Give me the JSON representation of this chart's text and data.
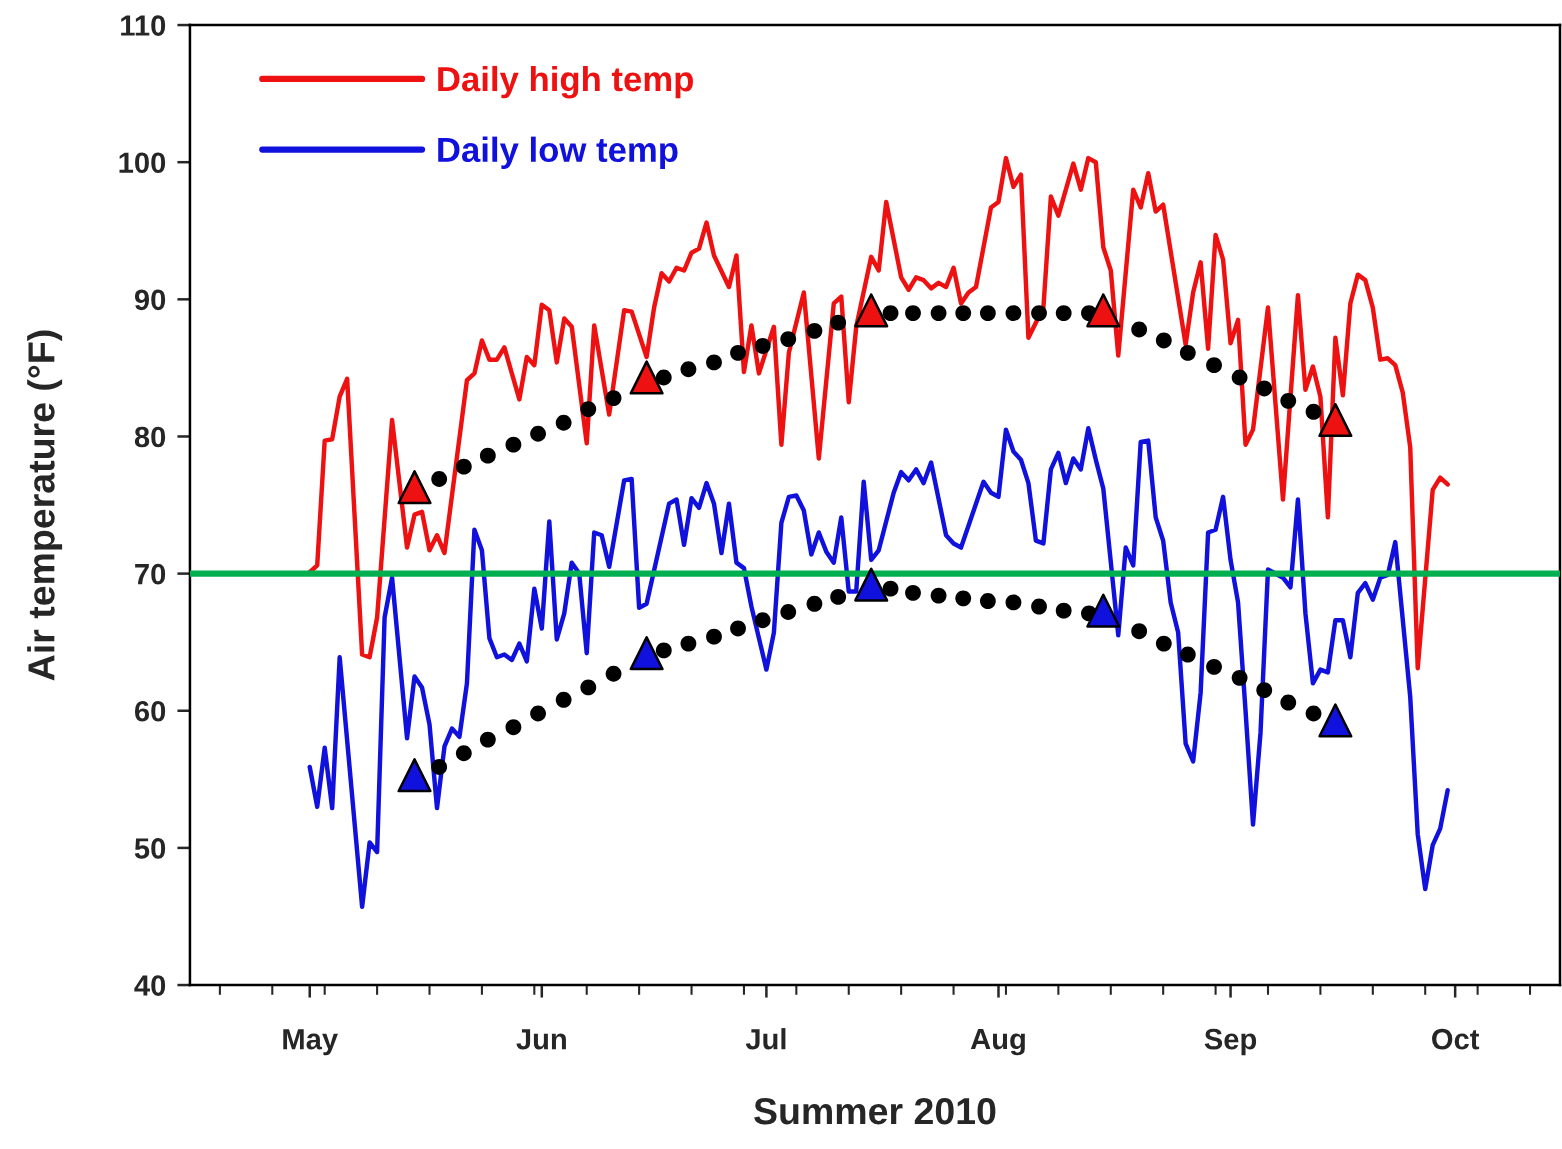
{
  "chart_data": {
    "type": "line",
    "xlabel": "Summer 2010",
    "ylabel": "Air temperature (°F)",
    "ylim": [
      40,
      110
    ],
    "yticks": [
      40,
      50,
      60,
      70,
      80,
      90,
      100,
      110
    ],
    "xlim": [
      "2010-04-15",
      "2010-10-15"
    ],
    "xticks": [
      {
        "value": "2010-04-19",
        "label": null
      },
      {
        "value": "2010-04-26",
        "label": null
      },
      {
        "value": "2010-05-01",
        "label": "May"
      },
      {
        "value": "2010-05-03",
        "label": null
      },
      {
        "value": "2010-05-10",
        "label": null
      },
      {
        "value": "2010-05-17",
        "label": null
      },
      {
        "value": "2010-05-24",
        "label": null
      },
      {
        "value": "2010-05-31",
        "label": null
      },
      {
        "value": "2010-06-01",
        "label": "Jun"
      },
      {
        "value": "2010-06-07",
        "label": null
      },
      {
        "value": "2010-06-14",
        "label": null
      },
      {
        "value": "2010-06-21",
        "label": null
      },
      {
        "value": "2010-06-28",
        "label": null
      },
      {
        "value": "2010-07-01",
        "label": "Jul"
      },
      {
        "value": "2010-07-05",
        "label": null
      },
      {
        "value": "2010-07-12",
        "label": null
      },
      {
        "value": "2010-07-19",
        "label": null
      },
      {
        "value": "2010-07-26",
        "label": null
      },
      {
        "value": "2010-08-01",
        "label": "Aug"
      },
      {
        "value": "2010-08-02",
        "label": null
      },
      {
        "value": "2010-08-09",
        "label": null
      },
      {
        "value": "2010-08-16",
        "label": null
      },
      {
        "value": "2010-08-23",
        "label": null
      },
      {
        "value": "2010-08-30",
        "label": null
      },
      {
        "value": "2010-09-01",
        "label": "Sep"
      },
      {
        "value": "2010-09-06",
        "label": null
      },
      {
        "value": "2010-09-13",
        "label": null
      },
      {
        "value": "2010-09-20",
        "label": null
      },
      {
        "value": "2010-09-27",
        "label": null
      },
      {
        "value": "2010-10-01",
        "label": "Oct"
      },
      {
        "value": "2010-10-04",
        "label": null
      },
      {
        "value": "2010-10-11",
        "label": null
      }
    ],
    "legend": "top left",
    "marker": "none",
    "line_style": "solid",
    "ref_lines": [
      {
        "axis": "y",
        "value": 70,
        "color": "#00b050"
      }
    ],
    "series": [
      {
        "name": "Daily high temp",
        "color": "#ee1111",
        "x": [
          "2010-05-01",
          "2010-05-02",
          "2010-05-03",
          "2010-05-04",
          "2010-05-05",
          "2010-05-06",
          "2010-05-08",
          "2010-05-09",
          "2010-05-10",
          "2010-05-12",
          "2010-05-14",
          "2010-05-15",
          "2010-05-16",
          "2010-05-17",
          "2010-05-18",
          "2010-05-19",
          "2010-05-22",
          "2010-05-23",
          "2010-05-24",
          "2010-05-25",
          "2010-05-26",
          "2010-05-27",
          "2010-05-29",
          "2010-05-30",
          "2010-05-31",
          "2010-06-01",
          "2010-06-02",
          "2010-06-03",
          "2010-06-04",
          "2010-06-05",
          "2010-06-07",
          "2010-06-08",
          "2010-06-10",
          "2010-06-12",
          "2010-06-13",
          "2010-06-15",
          "2010-06-16",
          "2010-06-17",
          "2010-06-18",
          "2010-06-19",
          "2010-06-20",
          "2010-06-21",
          "2010-06-22",
          "2010-06-23",
          "2010-06-24",
          "2010-06-26",
          "2010-06-27",
          "2010-06-28",
          "2010-06-29",
          "2010-06-30",
          "2010-07-02",
          "2010-07-03",
          "2010-07-04",
          "2010-07-06",
          "2010-07-08",
          "2010-07-10",
          "2010-07-11",
          "2010-07-12",
          "2010-07-13",
          "2010-07-15",
          "2010-07-16",
          "2010-07-17",
          "2010-07-19",
          "2010-07-20",
          "2010-07-21",
          "2010-07-22",
          "2010-07-23",
          "2010-07-24",
          "2010-07-25",
          "2010-07-26",
          "2010-07-27",
          "2010-07-28",
          "2010-07-29",
          "2010-07-31",
          "2010-08-01",
          "2010-08-02",
          "2010-08-03",
          "2010-08-04",
          "2010-08-05",
          "2010-08-07",
          "2010-08-08",
          "2010-08-09",
          "2010-08-11",
          "2010-08-12",
          "2010-08-13",
          "2010-08-14",
          "2010-08-15",
          "2010-08-16",
          "2010-08-17",
          "2010-08-19",
          "2010-08-20",
          "2010-08-21",
          "2010-08-22",
          "2010-08-23",
          "2010-08-26",
          "2010-08-27",
          "2010-08-28",
          "2010-08-29",
          "2010-08-30",
          "2010-08-31",
          "2010-09-01",
          "2010-09-02",
          "2010-09-03",
          "2010-09-04",
          "2010-09-06",
          "2010-09-08",
          "2010-09-10",
          "2010-09-11",
          "2010-09-12",
          "2010-09-13",
          "2010-09-14",
          "2010-09-15",
          "2010-09-16",
          "2010-09-17",
          "2010-09-18",
          "2010-09-19",
          "2010-09-20",
          "2010-09-21",
          "2010-09-22",
          "2010-09-23",
          "2010-09-24",
          "2010-09-25",
          "2010-09-26",
          "2010-09-28",
          "2010-09-29",
          "2010-09-30"
        ],
        "values": [
          70.1,
          70.6,
          79.7,
          79.8,
          82.9,
          84.2,
          64.1,
          63.9,
          66.8,
          81.2,
          71.9,
          74.3,
          74.5,
          71.7,
          72.8,
          71.5,
          84.1,
          84.6,
          87.0,
          85.6,
          85.6,
          86.5,
          82.7,
          85.8,
          85.2,
          89.6,
          89.2,
          85.4,
          88.6,
          88.0,
          79.5,
          88.1,
          81.6,
          89.2,
          89.1,
          85.8,
          89.4,
          91.9,
          91.3,
          92.3,
          92.1,
          93.4,
          93.7,
          95.6,
          93.2,
          90.9,
          93.2,
          84.7,
          88.1,
          84.6,
          88.0,
          79.4,
          86.1,
          90.5,
          78.4,
          89.7,
          90.2,
          82.5,
          88.0,
          93.1,
          92.1,
          97.1,
          91.6,
          90.7,
          91.6,
          91.4,
          90.8,
          91.2,
          90.9,
          92.3,
          89.7,
          90.5,
          90.9,
          96.7,
          97.1,
          100.3,
          98.2,
          99.1,
          87.2,
          89.4,
          97.5,
          96.1,
          99.9,
          98.0,
          100.3,
          100.0,
          93.8,
          92.1,
          85.9,
          98.0,
          96.7,
          99.2,
          96.4,
          96.9,
          86.7,
          90.5,
          92.7,
          86.4,
          94.7,
          92.9,
          86.8,
          88.5,
          79.4,
          80.5,
          89.4,
          75.4,
          90.3,
          83.4,
          85.1,
          82.9,
          74.1,
          87.2,
          83.0,
          89.7,
          91.8,
          91.4,
          89.4,
          85.6,
          85.7,
          85.2,
          83.2,
          79.2,
          63.1,
          76.1,
          77.0,
          76.5
        ]
      },
      {
        "name": "Daily low temp",
        "color": "#1111dd",
        "x": [
          "2010-05-01",
          "2010-05-02",
          "2010-05-03",
          "2010-05-04",
          "2010-05-05",
          "2010-05-08",
          "2010-05-09",
          "2010-05-10",
          "2010-05-11",
          "2010-05-12",
          "2010-05-14",
          "2010-05-15",
          "2010-05-16",
          "2010-05-17",
          "2010-05-18",
          "2010-05-19",
          "2010-05-20",
          "2010-05-21",
          "2010-05-22",
          "2010-05-23",
          "2010-05-24",
          "2010-05-25",
          "2010-05-26",
          "2010-05-27",
          "2010-05-28",
          "2010-05-29",
          "2010-05-30",
          "2010-05-31",
          "2010-06-01",
          "2010-06-02",
          "2010-06-03",
          "2010-06-04",
          "2010-06-05",
          "2010-06-06",
          "2010-06-07",
          "2010-06-08",
          "2010-06-09",
          "2010-06-10",
          "2010-06-12",
          "2010-06-13",
          "2010-06-14",
          "2010-06-15",
          "2010-06-18",
          "2010-06-19",
          "2010-06-20",
          "2010-06-21",
          "2010-06-22",
          "2010-06-23",
          "2010-06-24",
          "2010-06-25",
          "2010-06-26",
          "2010-06-27",
          "2010-06-28",
          "2010-06-29",
          "2010-07-01",
          "2010-07-02",
          "2010-07-03",
          "2010-07-04",
          "2010-07-05",
          "2010-07-06",
          "2010-07-07",
          "2010-07-08",
          "2010-07-09",
          "2010-07-10",
          "2010-07-11",
          "2010-07-12",
          "2010-07-13",
          "2010-07-14",
          "2010-07-15",
          "2010-07-16",
          "2010-07-18",
          "2010-07-19",
          "2010-07-20",
          "2010-07-21",
          "2010-07-22",
          "2010-07-23",
          "2010-07-25",
          "2010-07-26",
          "2010-07-27",
          "2010-07-30",
          "2010-07-31",
          "2010-08-01",
          "2010-08-02",
          "2010-08-03",
          "2010-08-04",
          "2010-08-05",
          "2010-08-06",
          "2010-08-07",
          "2010-08-08",
          "2010-08-09",
          "2010-08-10",
          "2010-08-11",
          "2010-08-12",
          "2010-08-13",
          "2010-08-14",
          "2010-08-15",
          "2010-08-17",
          "2010-08-18",
          "2010-08-19",
          "2010-08-20",
          "2010-08-21",
          "2010-08-22",
          "2010-08-23",
          "2010-08-24",
          "2010-08-25",
          "2010-08-26",
          "2010-08-27",
          "2010-08-28",
          "2010-08-29",
          "2010-08-30",
          "2010-08-31",
          "2010-09-01",
          "2010-09-02",
          "2010-09-03",
          "2010-09-04",
          "2010-09-05",
          "2010-09-06",
          "2010-09-08",
          "2010-09-09",
          "2010-09-10",
          "2010-09-11",
          "2010-09-12",
          "2010-09-13",
          "2010-09-14",
          "2010-09-15",
          "2010-09-16",
          "2010-09-17",
          "2010-09-18",
          "2010-09-19",
          "2010-09-20",
          "2010-09-21",
          "2010-09-22",
          "2010-09-23",
          "2010-09-25",
          "2010-09-26",
          "2010-09-27",
          "2010-09-28",
          "2010-09-29",
          "2010-09-30"
        ],
        "values": [
          55.9,
          53.0,
          57.3,
          52.9,
          63.9,
          45.7,
          50.4,
          49.7,
          66.8,
          69.7,
          58.0,
          62.5,
          61.7,
          59.0,
          52.9,
          57.4,
          58.7,
          58.1,
          62.0,
          73.2,
          71.7,
          65.3,
          63.9,
          64.1,
          63.7,
          64.9,
          63.6,
          68.9,
          66.0,
          73.8,
          65.2,
          67.1,
          70.8,
          70.0,
          64.2,
          73.0,
          72.8,
          70.5,
          76.8,
          76.9,
          67.5,
          67.8,
          75.1,
          75.4,
          72.1,
          75.5,
          74.8,
          76.6,
          75.1,
          71.5,
          75.1,
          70.8,
          70.4,
          67.6,
          63.0,
          65.7,
          73.7,
          75.6,
          75.7,
          74.6,
          71.4,
          73.0,
          71.6,
          70.8,
          74.1,
          68.7,
          68.7,
          76.7,
          71.0,
          71.7,
          75.9,
          77.4,
          76.8,
          77.6,
          76.6,
          78.1,
          72.8,
          72.2,
          71.9,
          76.7,
          75.9,
          75.6,
          80.5,
          78.9,
          78.3,
          76.6,
          72.4,
          72.2,
          77.6,
          78.8,
          76.6,
          78.4,
          77.6,
          80.6,
          78.3,
          76.2,
          65.5,
          71.9,
          70.6,
          79.6,
          79.7,
          74.1,
          72.4,
          67.9,
          65.7,
          57.6,
          56.3,
          61.3,
          73.0,
          73.2,
          75.6,
          71.0,
          67.9,
          60.0,
          51.7,
          58.4,
          70.3,
          69.7,
          69.0,
          75.4,
          67.1,
          62.0,
          63.0,
          62.8,
          66.6,
          66.6,
          63.9,
          68.6,
          69.3,
          68.1,
          69.7,
          69.9,
          72.3,
          61.0,
          51.0,
          47.0,
          50.2,
          51.4,
          54.2
        ]
      },
      {
        "type": "scatter",
        "marker": "circle",
        "color": "#000000",
        "x": [
          "2010-05-18T07:00",
          "2010-05-21T14:00",
          "2010-05-24T19:00",
          "2010-05-28T05:00",
          "2010-05-31T12:00",
          "2010-06-03T22:00",
          "2010-06-07T05:00",
          "2010-06-10T14:00",
          "2010-06-17T07:00",
          "2010-06-20T14:00",
          "2010-06-24T00:00",
          "2010-06-27T05:00",
          "2010-06-30T12:00",
          "2010-07-03T22:00",
          "2010-07-07T10:00",
          "2010-07-10T14:00",
          "2010-07-17T14:00",
          "2010-07-20T14:00",
          "2010-07-24T00:00",
          "2010-07-27T07:00",
          "2010-07-30T14:00",
          "2010-08-03T00:00",
          "2010-08-06T10:00",
          "2010-08-09T17:00",
          "2010-08-13T02:00",
          "2010-08-19T19:00",
          "2010-08-23T02:00",
          "2010-08-26T07:00",
          "2010-08-29T19:00",
          "2010-09-02T05:00",
          "2010-09-05T12:00",
          "2010-09-08T17:00",
          "2010-09-12T02:00"
        ],
        "values": [
          76.9,
          77.8,
          78.6,
          79.4,
          80.2,
          81.0,
          82.0,
          82.8,
          84.3,
          84.9,
          85.4,
          86.1,
          86.6,
          87.1,
          87.7,
          88.3,
          89.0,
          89.0,
          89.0,
          89.0,
          89.0,
          89.0,
          89.0,
          89.0,
          89.0,
          87.8,
          87.0,
          86.1,
          85.2,
          84.3,
          83.5,
          82.6,
          81.8
        ]
      },
      {
        "type": "scatter",
        "marker": "circle",
        "color": "#000000",
        "x": [
          "2010-05-18T07:00",
          "2010-05-21T14:00",
          "2010-05-24T19:00",
          "2010-05-28T05:00",
          "2010-05-31T12:00",
          "2010-06-03T22:00",
          "2010-06-07T05:00",
          "2010-06-10T14:00",
          "2010-06-17T07:00",
          "2010-06-20T14:00",
          "2010-06-24T00:00",
          "2010-06-27T05:00",
          "2010-06-30T12:00",
          "2010-07-03T22:00",
          "2010-07-07T10:00",
          "2010-07-10T14:00",
          "2010-07-17T14:00",
          "2010-07-20T14:00",
          "2010-07-24T00:00",
          "2010-07-27T07:00",
          "2010-07-30T14:00",
          "2010-08-03T00:00",
          "2010-08-06T10:00",
          "2010-08-09T17:00",
          "2010-08-13T02:00",
          "2010-08-19T19:00",
          "2010-08-23T02:00",
          "2010-08-26T07:00",
          "2010-08-29T19:00",
          "2010-09-02T05:00",
          "2010-09-05T12:00",
          "2010-09-08T17:00",
          "2010-09-12T02:00"
        ],
        "values": [
          55.9,
          56.9,
          57.9,
          58.8,
          59.8,
          60.8,
          61.7,
          62.7,
          64.4,
          64.9,
          65.4,
          66.0,
          66.6,
          67.2,
          67.8,
          68.3,
          68.9,
          68.6,
          68.4,
          68.2,
          68.0,
          67.9,
          67.6,
          67.3,
          67.1,
          65.8,
          64.9,
          64.1,
          63.2,
          62.4,
          61.5,
          60.6,
          59.8
        ]
      },
      {
        "type": "scatter",
        "marker": "triangle",
        "color": "#ee1111",
        "x": [
          "2010-05-15",
          "2010-06-15",
          "2010-07-15",
          "2010-08-15",
          "2010-09-15"
        ],
        "values": [
          76.3,
          84.3,
          89.2,
          89.2,
          81.2
        ]
      },
      {
        "type": "scatter",
        "marker": "triangle",
        "color": "#1111dd",
        "x": [
          "2010-05-15",
          "2010-06-15",
          "2010-07-15",
          "2010-08-15",
          "2010-09-15"
        ],
        "values": [
          55.3,
          64.2,
          69.2,
          67.3,
          59.3
        ]
      }
    ]
  }
}
